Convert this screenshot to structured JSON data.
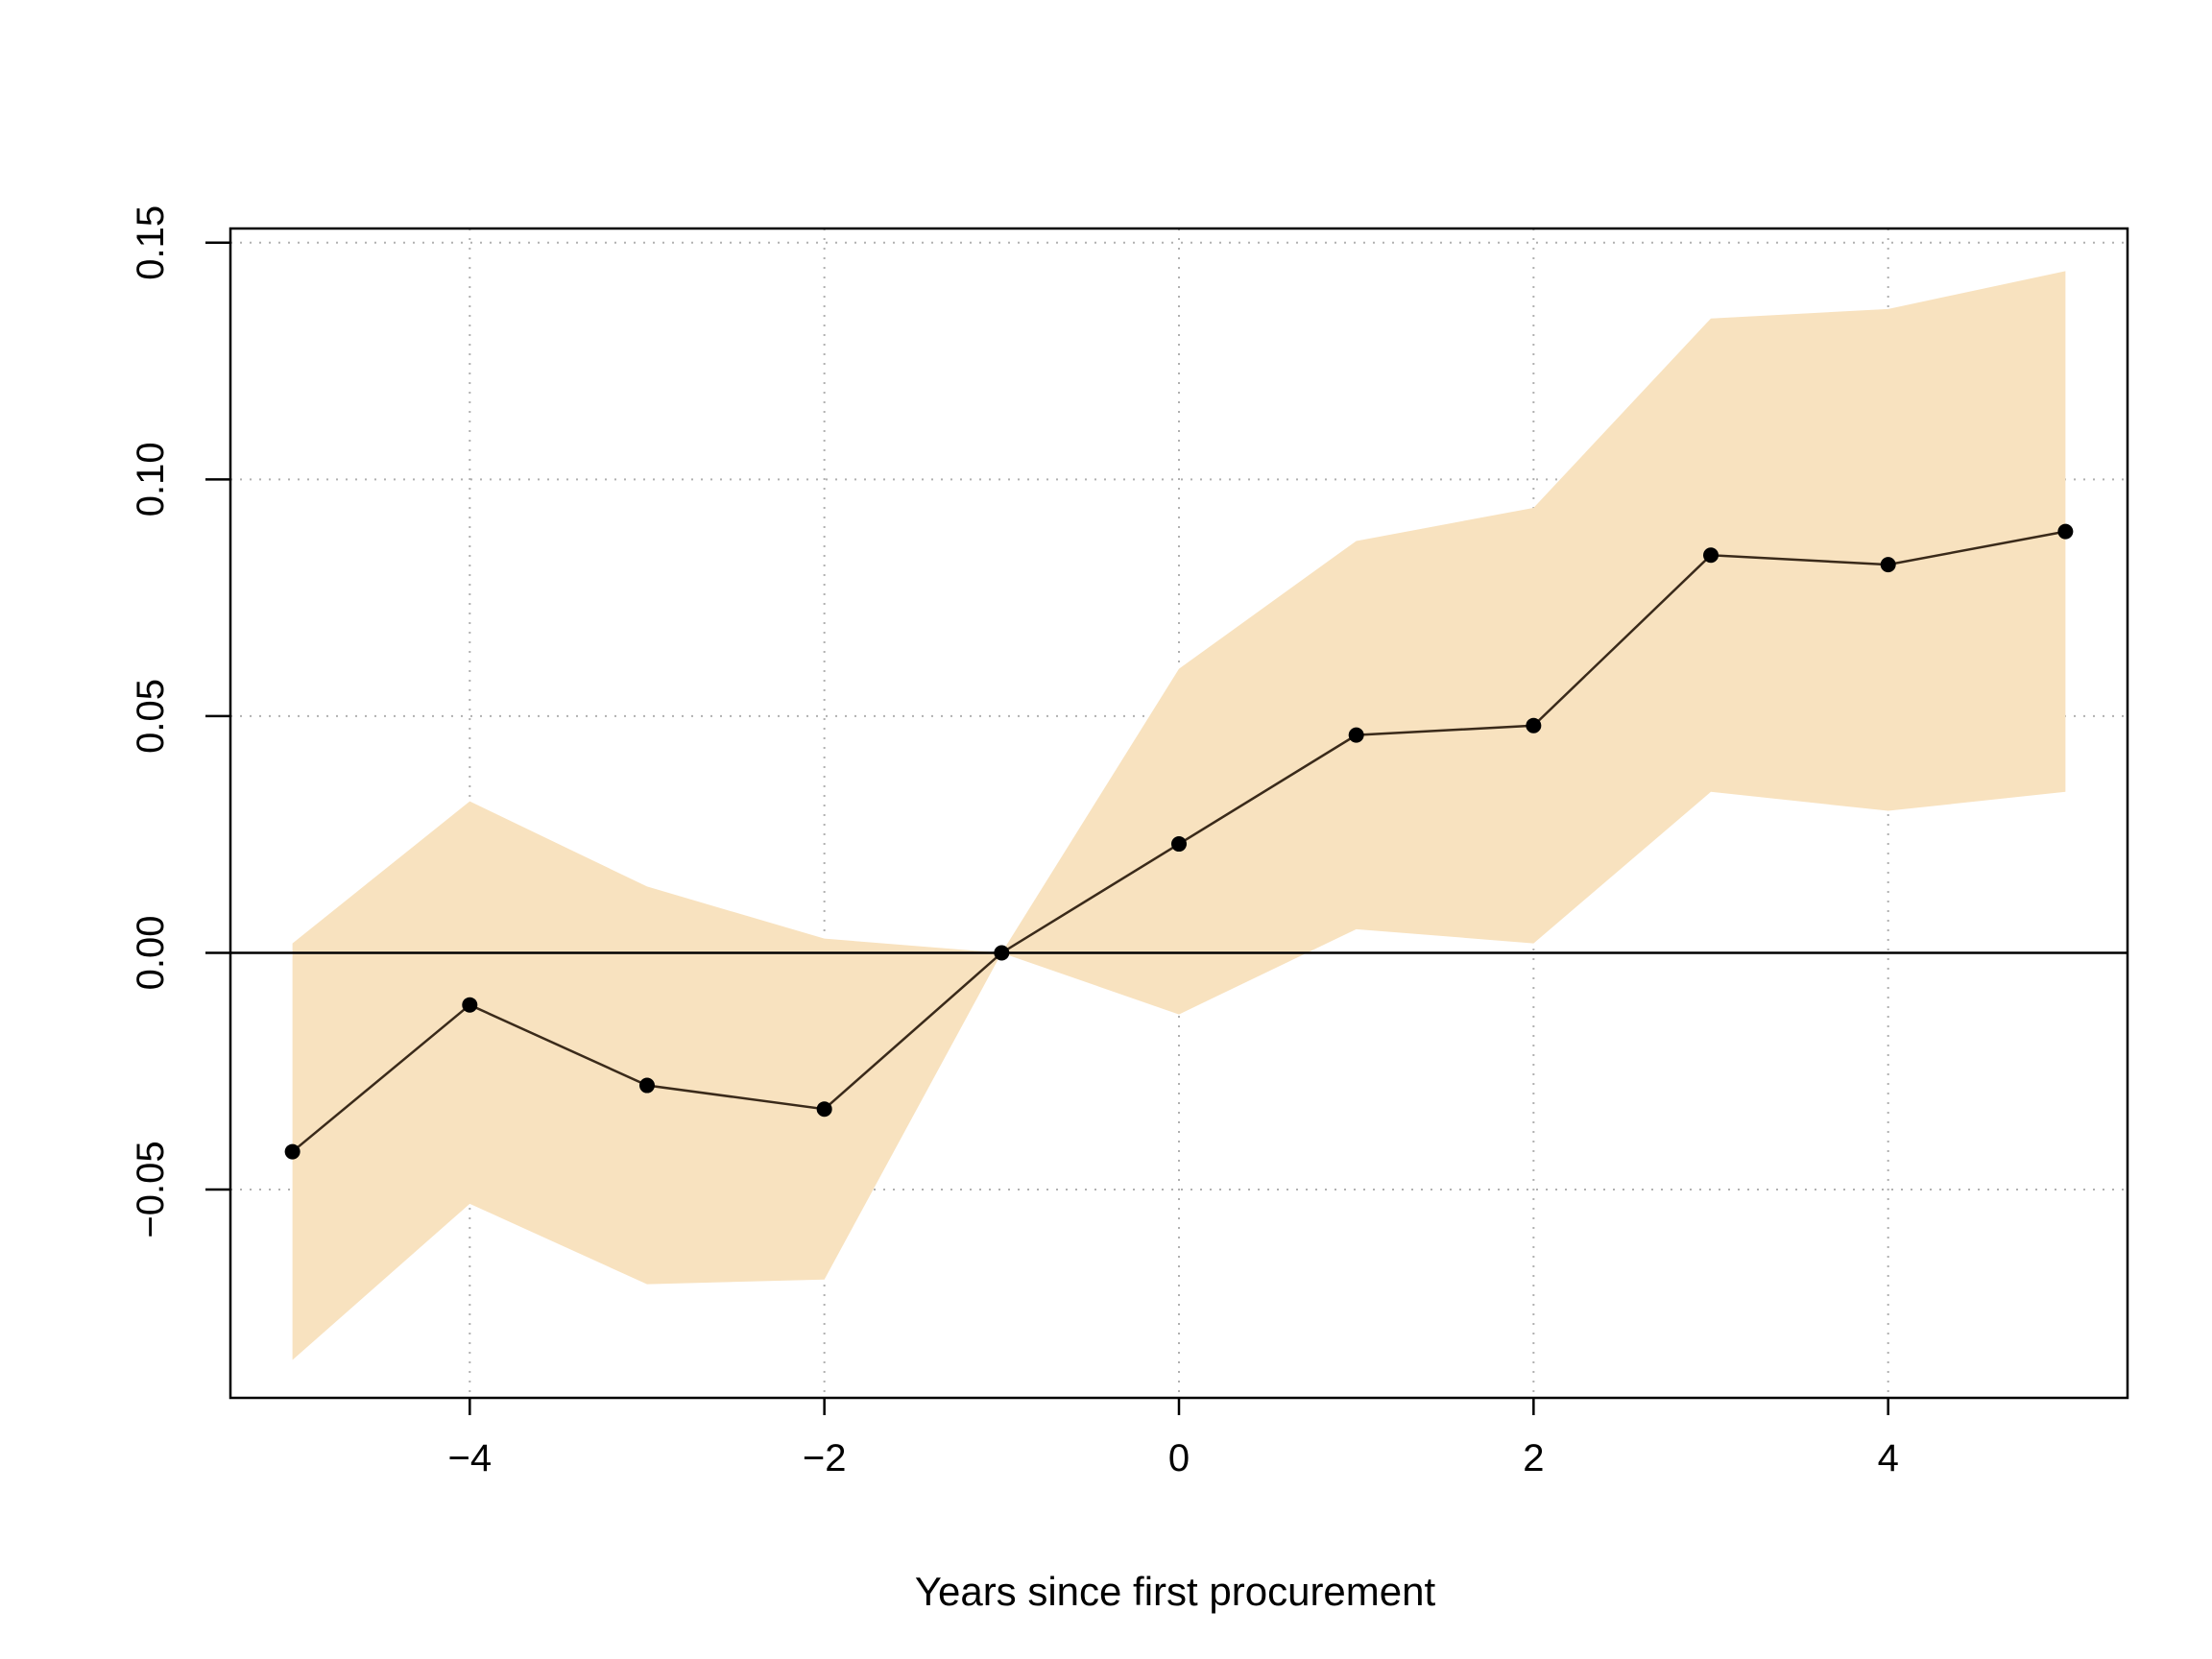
{
  "chart_data": {
    "type": "line",
    "xlabel": "Years since first procurement",
    "ylabel": "",
    "xlim": [
      -5.35,
      5.35
    ],
    "ylim": [
      -0.094,
      0.153
    ],
    "x_ticks": [
      -4,
      -2,
      0,
      2,
      4
    ],
    "x_tick_labels": [
      "−4",
      "−2",
      "0",
      "2",
      "4"
    ],
    "y_ticks": [
      -0.05,
      0.0,
      0.05,
      0.1,
      0.15
    ],
    "y_tick_labels": [
      "−0.05",
      "0.00",
      "0.05",
      "0.10",
      "0.15"
    ],
    "grid": true,
    "reference_line_y": 0,
    "colors": {
      "band": "#f8e2bf",
      "line": "#3a2a1a",
      "point": "#000000",
      "grid": "#b0b0b0"
    },
    "series": [
      {
        "x": [
          -5,
          -4,
          -3,
          -2,
          -1,
          0,
          1,
          2,
          3,
          4,
          5
        ],
        "y": [
          -0.042,
          -0.011,
          -0.028,
          -0.033,
          0.0,
          0.023,
          0.046,
          0.048,
          0.084,
          0.082,
          0.089
        ],
        "lower": [
          -0.086,
          -0.053,
          -0.07,
          -0.069,
          0.0,
          -0.013,
          0.005,
          0.002,
          0.034,
          0.03,
          0.034
        ],
        "upper": [
          0.002,
          0.032,
          0.014,
          0.003,
          0.0,
          0.06,
          0.087,
          0.094,
          0.134,
          0.136,
          0.144
        ]
      }
    ]
  }
}
